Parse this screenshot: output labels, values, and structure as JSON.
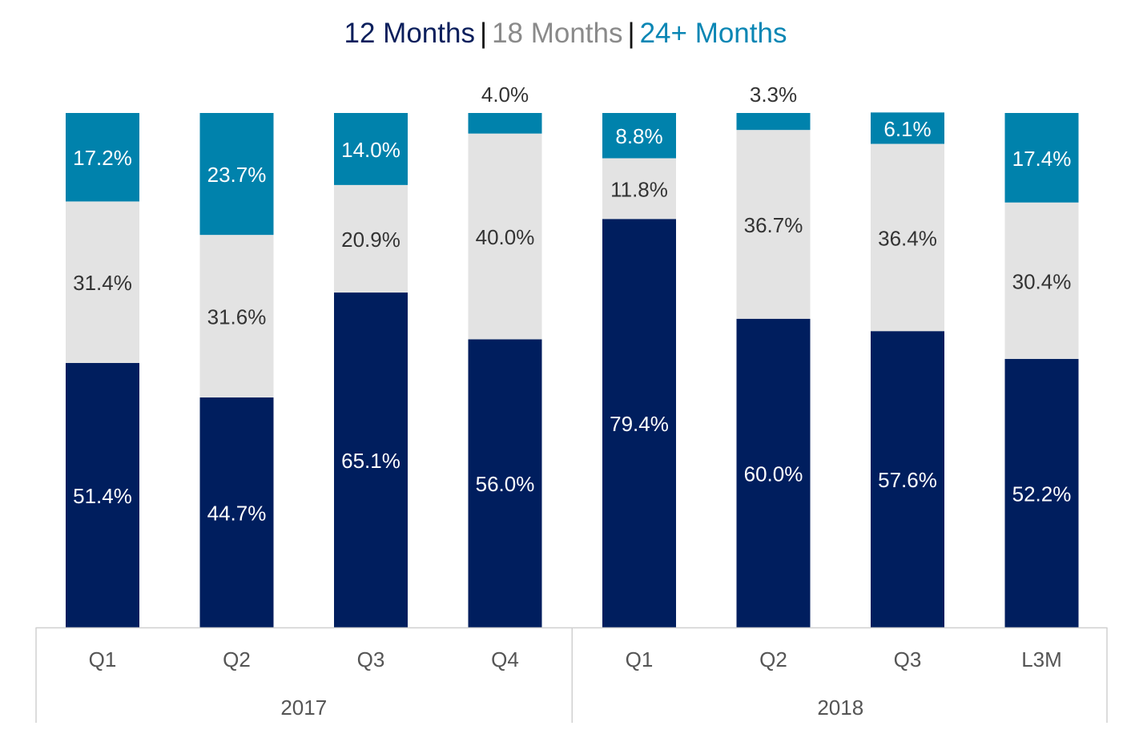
{
  "legend": {
    "items": [
      {
        "label": "12 Months",
        "color": "#0b1f5c"
      },
      {
        "label": "18 Months",
        "color": "#8a8a8a"
      },
      {
        "label": "24+ Months",
        "color": "#0a86b4"
      }
    ],
    "separator": "|"
  },
  "chart_data": {
    "type": "bar",
    "stacked": true,
    "categories": [
      "Q1",
      "Q2",
      "Q3",
      "Q4",
      "Q1",
      "Q2",
      "Q3",
      "L3M"
    ],
    "groups": [
      {
        "label": "2017",
        "categories": [
          "Q1",
          "Q2",
          "Q3",
          "Q4"
        ]
      },
      {
        "label": "2018",
        "categories": [
          "Q1",
          "Q2",
          "Q3",
          "L3M"
        ]
      }
    ],
    "series": [
      {
        "name": "12 Months",
        "color": "#001e5e",
        "label_color": "#ffffff",
        "values": [
          51.4,
          44.7,
          65.1,
          56.0,
          79.4,
          60.0,
          57.6,
          52.2
        ]
      },
      {
        "name": "18 Months",
        "color": "#e3e3e3",
        "label_color": "#333333",
        "values": [
          31.4,
          31.6,
          20.9,
          40.0,
          11.8,
          36.7,
          36.4,
          30.4
        ]
      },
      {
        "name": "24+ Months",
        "color": "#0082ac",
        "label_color": "#ffffff",
        "values": [
          17.2,
          23.7,
          14.0,
          4.0,
          8.8,
          3.3,
          6.1,
          17.4
        ]
      }
    ],
    "value_suffix": "%",
    "ylim": [
      0,
      100
    ],
    "grid": false,
    "legend_position": "top"
  }
}
